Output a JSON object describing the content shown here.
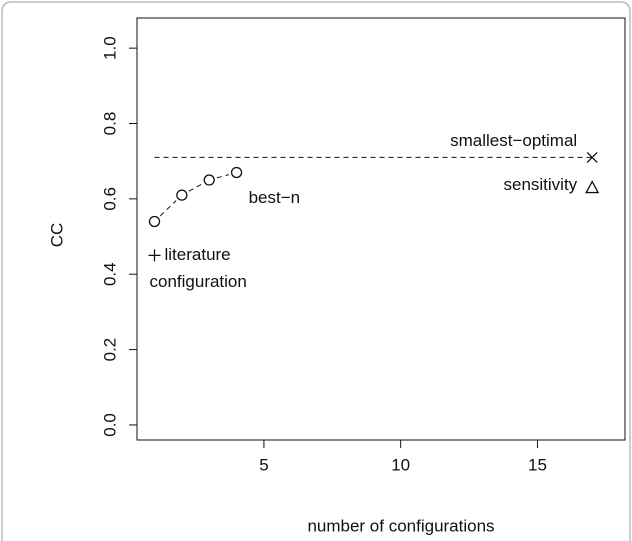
{
  "chart_data": {
    "type": "scatter",
    "xlabel": "number of configurations",
    "ylabel": "CC",
    "xlim": [
      0.36,
      18.2
    ],
    "ylim": [
      -0.04,
      1.08
    ],
    "xticks": [
      5,
      10,
      15
    ],
    "yticks": [
      {
        "value": 0,
        "label": "0.0"
      },
      0.2,
      0.4,
      0.6,
      0.8,
      {
        "value": 1,
        "label": "1.0"
      }
    ],
    "hline": 0.71,
    "series": [
      {
        "name": "best−n",
        "marker": "circle",
        "connected": true,
        "color": "#111111",
        "x": [
          1,
          2,
          3,
          4
        ],
        "values": [
          0.54,
          0.61,
          0.65,
          0.67
        ]
      },
      {
        "name": [
          "literature",
          "configuration"
        ],
        "marker": "plus",
        "color": "#111111",
        "x": [
          1
        ],
        "values": [
          0.45
        ]
      },
      {
        "name": "smallest−optimal",
        "marker": "cross",
        "color": "#111111",
        "x": [
          17
        ],
        "values": [
          0.71
        ]
      },
      {
        "name": "sensitivity",
        "marker": "triangle",
        "color": "#111111",
        "x": [
          17
        ],
        "values": [
          0.63
        ]
      }
    ]
  }
}
